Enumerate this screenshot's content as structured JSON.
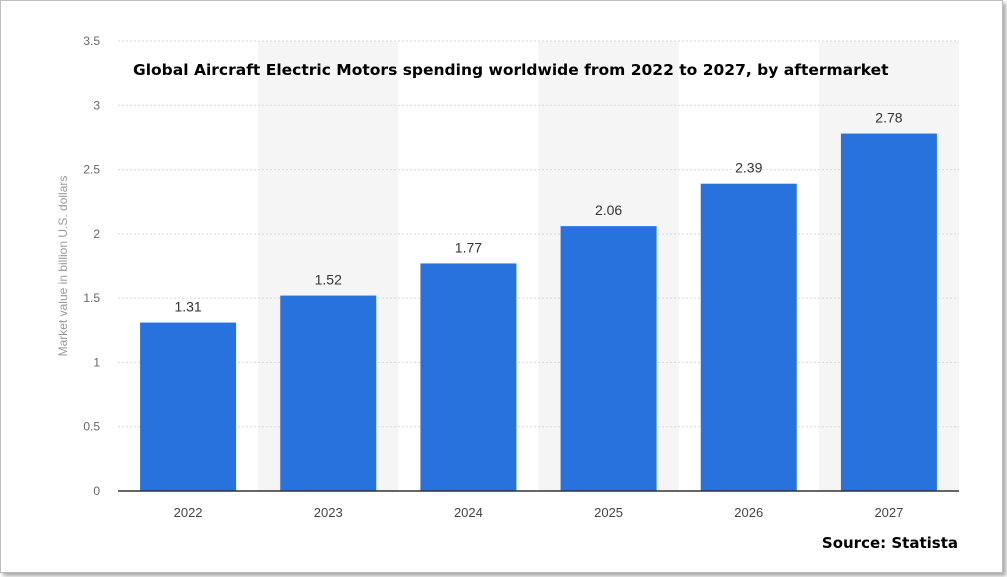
{
  "chart_data": {
    "type": "bar",
    "title": "Global Aircraft Electric Motors spending worldwide from 2022 to 2027, by aftermarket",
    "xlabel": "",
    "ylabel": "Market value in billion U.S. dollars",
    "categories": [
      "2022",
      "2023",
      "2024",
      "2025",
      "2026",
      "2027"
    ],
    "values": [
      1.31,
      1.52,
      1.77,
      2.06,
      2.39,
      2.78
    ],
    "data_labels": [
      "1.31",
      "1.52",
      "1.77",
      "2.06",
      "2.39",
      "2.78"
    ],
    "ylim": [
      0,
      3.5
    ],
    "yticks": [
      0,
      0.5,
      1,
      1.5,
      2,
      2.5,
      3,
      3.5
    ],
    "ytick_labels": [
      "0",
      "0.5",
      "1",
      "1.5",
      "2",
      "2.5",
      "3",
      "3.5"
    ],
    "grid": true,
    "legend": "none",
    "bar_color": "#2872dd",
    "source": "Source: Statista"
  }
}
